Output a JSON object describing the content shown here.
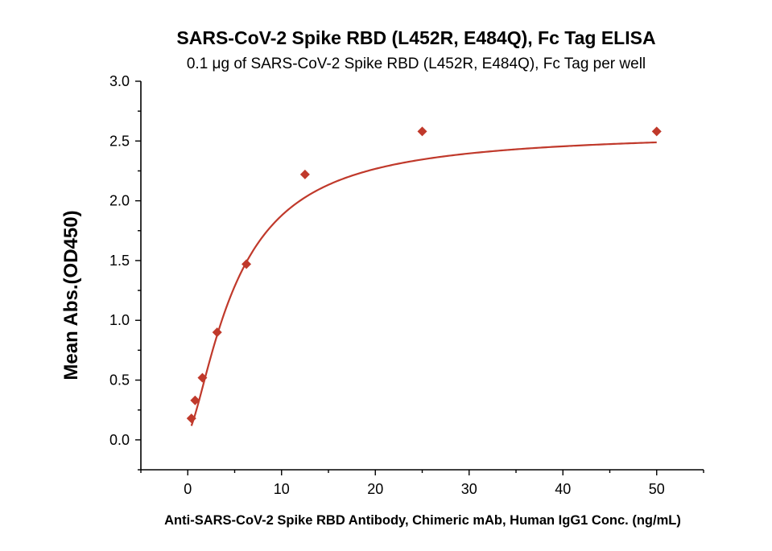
{
  "chart_data": {
    "type": "scatter",
    "title": "SARS-CoV-2 Spike RBD (L452R, E484Q), Fc Tag ELISA",
    "subtitle": "0.1 μg of SARS-CoV-2 Spike RBD (L452R, E484Q), Fc Tag per well",
    "xlabel": "Anti-SARS-CoV-2 Spike RBD Antibody, Chimeric mAb, Human IgG1 Conc. (ng/mL)",
    "ylabel": "Mean Abs.(OD450)",
    "xlim": [
      -5,
      55
    ],
    "ylim": [
      -0.25,
      3.0
    ],
    "x_ticks": [
      0,
      10,
      20,
      30,
      40,
      50
    ],
    "x_tick_labels": [
      "0",
      "10",
      "20",
      "30",
      "40",
      "50"
    ],
    "y_ticks": [
      0.0,
      0.5,
      1.0,
      1.5,
      2.0,
      2.5,
      3.0
    ],
    "y_tick_labels": [
      "0.0",
      "0.5",
      "1.0",
      "1.5",
      "2.0",
      "2.5",
      "3.0"
    ],
    "grid": false,
    "color": "#c0392b",
    "series": [
      {
        "marker": "diamond",
        "x": [
          0.39,
          0.78,
          1.56,
          3.13,
          6.25,
          12.5,
          25,
          50
        ],
        "y": [
          0.18,
          0.33,
          0.52,
          0.9,
          1.47,
          2.22,
          2.58,
          2.58
        ]
      }
    ],
    "fit": {
      "type": "4PL",
      "bottom": 0.06,
      "top": 2.58,
      "ec50": 5.2,
      "hill": 1.45
    }
  }
}
